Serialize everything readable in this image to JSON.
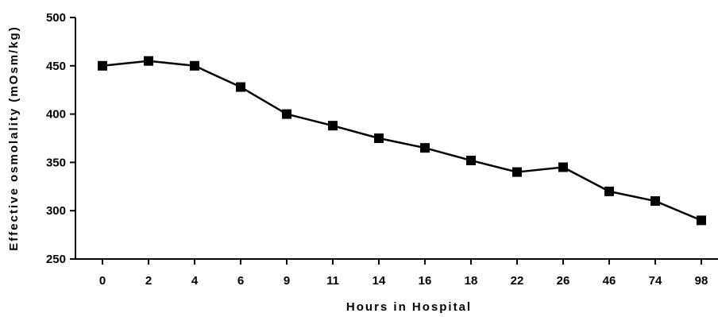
{
  "chart_data": {
    "type": "line",
    "title": "",
    "xlabel": "Hours in Hospital",
    "ylabel": "Effective osmolality (mOsm/kg)",
    "categories": [
      "0",
      "2",
      "4",
      "6",
      "9",
      "11",
      "14",
      "16",
      "18",
      "22",
      "26",
      "46",
      "74",
      "98"
    ],
    "series": [
      {
        "values": [
          450,
          455,
          450,
          428,
          400,
          388,
          375,
          365,
          352,
          340,
          345,
          320,
          310,
          290
        ]
      }
    ],
    "ylim": [
      250,
      500
    ],
    "yticks": [
      250,
      300,
      350,
      400,
      450,
      500
    ],
    "grid": false,
    "legend": "none",
    "colors": {
      "line": "#000000",
      "marker": "#000000",
      "axis": "#000000"
    },
    "marker_shape": "square"
  }
}
